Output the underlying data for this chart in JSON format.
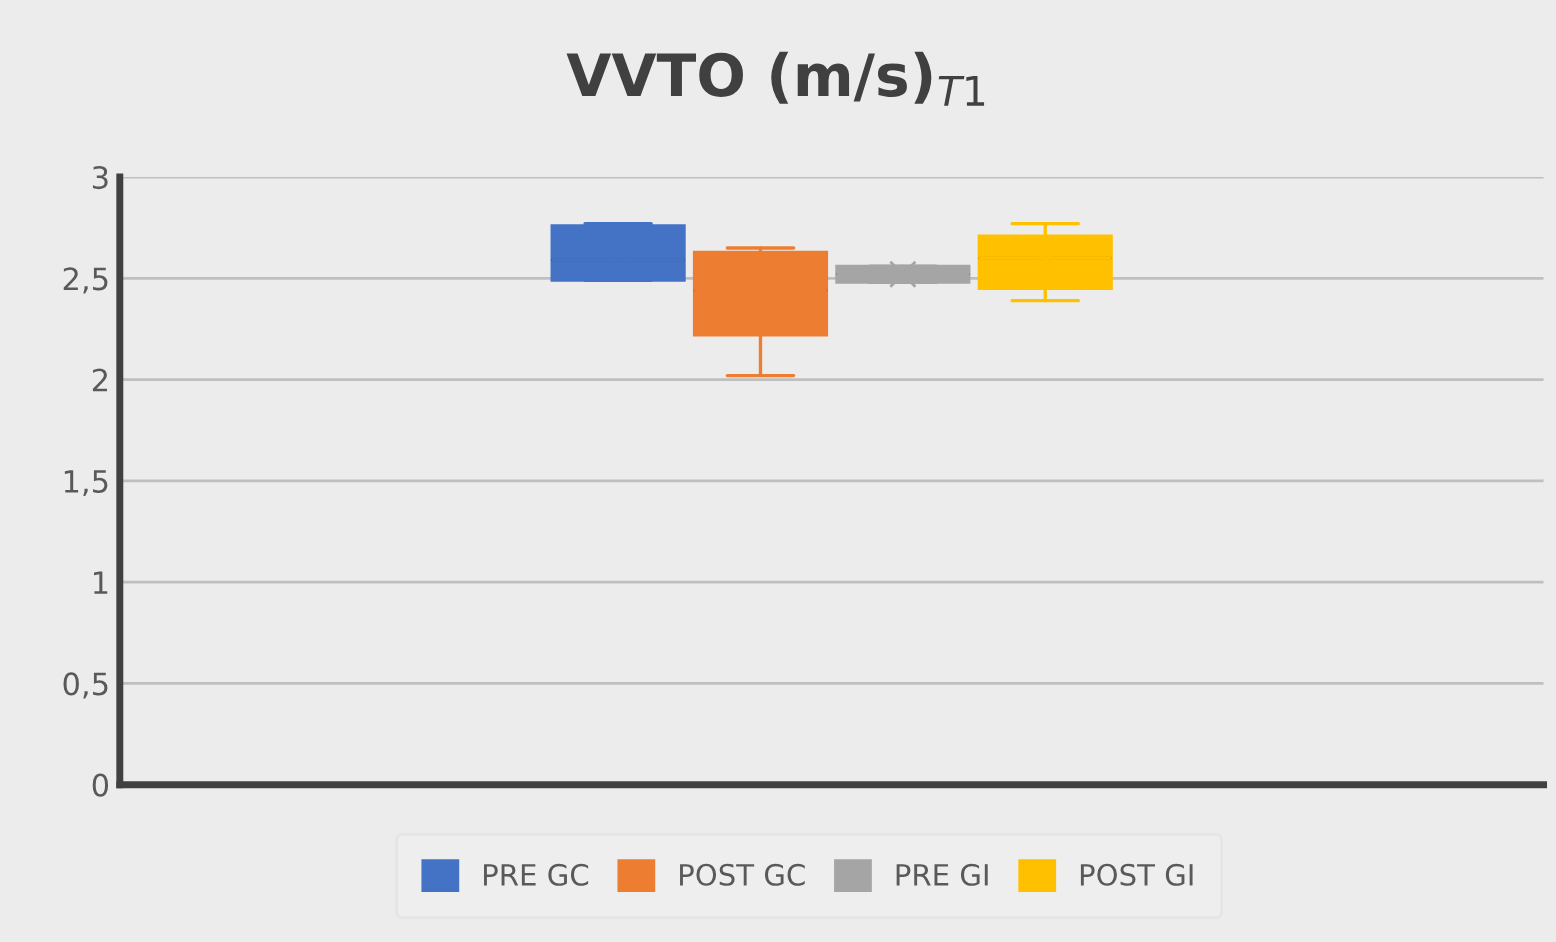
{
  "chart_data": {
    "type": "box",
    "title": "VVTO (m/s)$_{T1}$",
    "categories": [
      null
    ],
    "series": [
      {
        "name": "PRE GC",
        "color": "#4472c4",
        "boxes": [
          {
            "low": 2.49,
            "q1": 2.49,
            "median": 2.59,
            "q3": 2.76,
            "high": 2.77,
            "mean": 2.63
          }
        ]
      },
      {
        "name": "POST GC",
        "color": "#ed7d31",
        "boxes": [
          {
            "low": 2.02,
            "q1": 2.22,
            "median": 2.44,
            "q3": 2.63,
            "high": 2.65,
            "mean": 2.42
          }
        ]
      },
      {
        "name": "PRE GI",
        "color": "#a5a5a5",
        "boxes": [
          {
            "low": 2.48,
            "q1": 2.48,
            "median": 2.52,
            "q3": 2.56,
            "high": 2.56,
            "mean": 2.52
          }
        ]
      },
      {
        "name": "POST GI",
        "color": "#ffc000",
        "boxes": [
          {
            "low": 2.39,
            "q1": 2.45,
            "median": 2.6,
            "q3": 2.71,
            "high": 2.77,
            "mean": 2.59
          }
        ]
      }
    ],
    "ylim": [
      0,
      3
    ],
    "yticks": [
      0,
      {
        "value": 0.5,
        "label": "0,5"
      },
      1,
      {
        "value": 1.5,
        "label": "1,5"
      },
      2,
      {
        "value": 2.5,
        "label": "2,5"
      },
      3
    ],
    "grid": "y",
    "legend": "bottom"
  }
}
